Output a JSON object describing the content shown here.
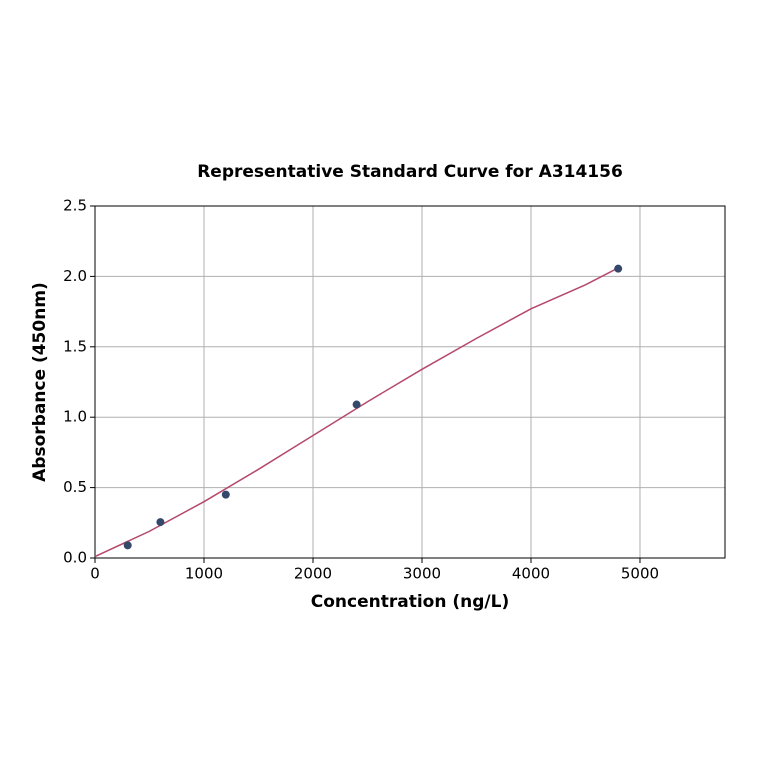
{
  "chart_data": {
    "type": "scatter",
    "title": "Representative Standard Curve for A314156",
    "x_label": "Concentration (ng/L)",
    "y_label": "Absorbance (450nm)",
    "xlim": [
      0,
      5780
    ],
    "xticks": [
      0,
      1000,
      2000,
      3000,
      4000,
      5000
    ],
    "ylim": [
      0,
      2.5
    ],
    "yticks": [
      {
        "value": 0,
        "label": "0.0"
      },
      {
        "value": 0.5,
        "label": "0.5"
      },
      {
        "value": 1,
        "label": "1.0"
      },
      {
        "value": 1.5,
        "label": "1.5"
      },
      {
        "value": 2,
        "label": "2.0"
      },
      {
        "value": 2.5,
        "label": "2.5"
      }
    ],
    "grid": true,
    "series": [
      {
        "type": "scatter",
        "color": "#34486b",
        "x": [
          300,
          600,
          1200,
          2400,
          4800
        ],
        "values": [
          0.09,
          0.255,
          0.45,
          1.09,
          2.055
        ]
      },
      {
        "type": "line",
        "color": "#b5486b",
        "x": [
          0,
          500,
          1000,
          1500,
          2000,
          2500,
          3000,
          3500,
          4000,
          4500,
          4800
        ],
        "values": [
          0.01,
          0.19,
          0.4,
          0.63,
          0.87,
          1.11,
          1.34,
          1.56,
          1.77,
          1.94,
          2.06
        ]
      }
    ]
  }
}
